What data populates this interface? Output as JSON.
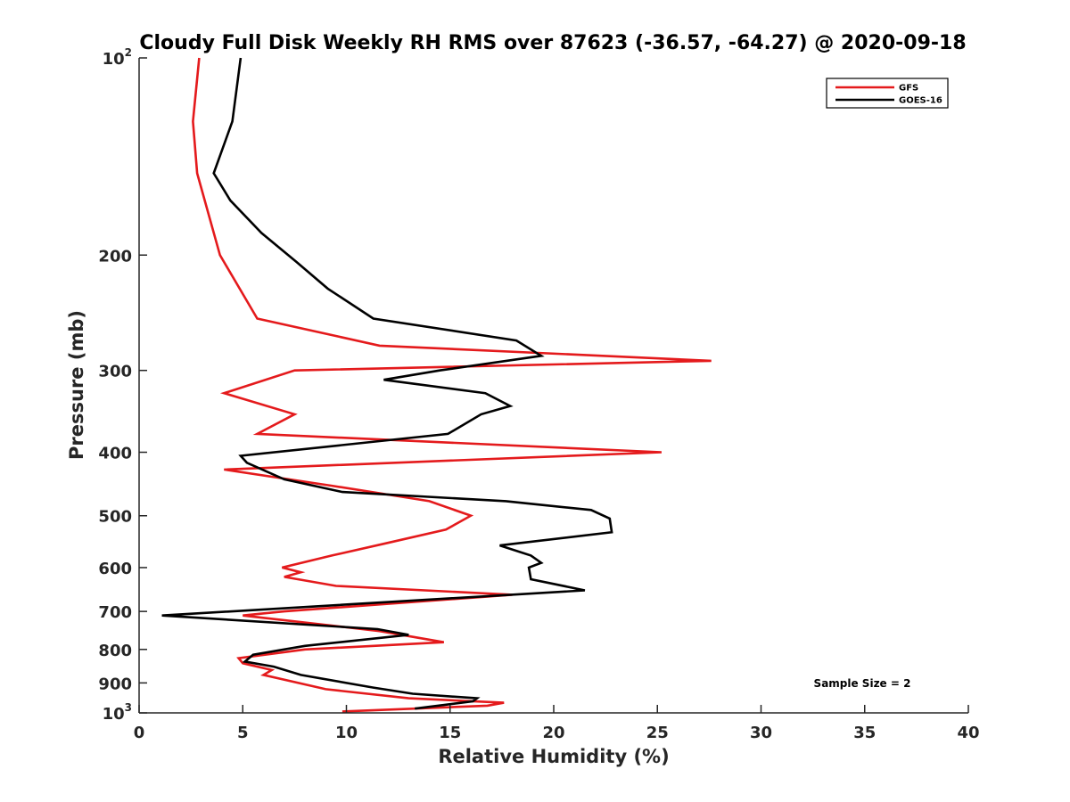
{
  "chart_data": {
    "type": "line",
    "title": "Cloudy Full Disk Weekly RH RMS over 87623 (-36.57, -64.27) @ 2020-09-18",
    "xlabel": "Relative Humidity (%)",
    "ylabel": "Pressure (mb)",
    "xlim": [
      0,
      40
    ],
    "ylim": [
      100,
      1000
    ],
    "y_scale": "log",
    "y_reversed": true,
    "grid": false,
    "legend_position": "top-right",
    "annotation": "Sample Size = 2",
    "x_ticks": [
      {
        "value": 0,
        "label": "0"
      },
      {
        "value": 5,
        "label": "5"
      },
      {
        "value": 10,
        "label": "10"
      },
      {
        "value": 15,
        "label": "15"
      },
      {
        "value": 20,
        "label": "20"
      },
      {
        "value": 25,
        "label": "25"
      },
      {
        "value": 30,
        "label": "30"
      },
      {
        "value": 35,
        "label": "35"
      },
      {
        "value": 40,
        "label": "40"
      }
    ],
    "y_ticks": [
      {
        "value": 100,
        "base": "10",
        "exp": "2"
      },
      {
        "value": 200,
        "label": "200"
      },
      {
        "value": 300,
        "label": "300"
      },
      {
        "value": 400,
        "label": "400"
      },
      {
        "value": 500,
        "label": "500"
      },
      {
        "value": 600,
        "label": "600"
      },
      {
        "value": 700,
        "label": "700"
      },
      {
        "value": 800,
        "label": "800"
      },
      {
        "value": 900,
        "label": "900"
      },
      {
        "value": 1000,
        "base": "10",
        "exp": "3"
      }
    ],
    "series": [
      {
        "name": "GFS",
        "color": "#e41a1c",
        "points": [
          [
            2.9,
            100
          ],
          [
            2.6,
            125
          ],
          [
            2.8,
            150
          ],
          [
            3.9,
            200
          ],
          [
            5.7,
            250
          ],
          [
            11.6,
            275
          ],
          [
            27.6,
            290
          ],
          [
            7.5,
            300
          ],
          [
            4.1,
            325
          ],
          [
            7.5,
            350
          ],
          [
            5.7,
            375
          ],
          [
            25.2,
            400
          ],
          [
            4.1,
            425
          ],
          [
            9.3,
            450
          ],
          [
            14.0,
            475
          ],
          [
            16.0,
            500
          ],
          [
            14.8,
            525
          ],
          [
            12.0,
            550
          ],
          [
            9.3,
            575
          ],
          [
            6.9,
            600
          ],
          [
            7.8,
            610
          ],
          [
            7.0,
            620
          ],
          [
            9.5,
            640
          ],
          [
            18.0,
            660
          ],
          [
            7.0,
            700
          ],
          [
            5.0,
            710
          ],
          [
            11.6,
            750
          ],
          [
            14.7,
            780
          ],
          [
            8.0,
            800
          ],
          [
            4.8,
            825
          ],
          [
            5.0,
            840
          ],
          [
            6.4,
            860
          ],
          [
            6.0,
            875
          ],
          [
            9.0,
            920
          ],
          [
            13.0,
            950
          ],
          [
            17.6,
            965
          ],
          [
            16.8,
            975
          ],
          [
            9.8,
            995
          ]
        ]
      },
      {
        "name": "GOES-16",
        "color": "#000000",
        "points": [
          [
            4.9,
            100
          ],
          [
            4.5,
            125
          ],
          [
            3.6,
            150
          ],
          [
            4.4,
            165
          ],
          [
            5.9,
            185
          ],
          [
            7.6,
            205
          ],
          [
            9.1,
            225
          ],
          [
            11.3,
            250
          ],
          [
            18.2,
            270
          ],
          [
            19.4,
            285
          ],
          [
            14.5,
            300
          ],
          [
            11.8,
            310
          ],
          [
            16.7,
            325
          ],
          [
            17.9,
            340
          ],
          [
            16.5,
            350
          ],
          [
            14.9,
            375
          ],
          [
            4.9,
            405
          ],
          [
            5.2,
            415
          ],
          [
            7.0,
            440
          ],
          [
            9.8,
            460
          ],
          [
            17.7,
            475
          ],
          [
            21.8,
            490
          ],
          [
            22.7,
            505
          ],
          [
            22.8,
            530
          ],
          [
            17.4,
            555
          ],
          [
            18.9,
            575
          ],
          [
            19.4,
            590
          ],
          [
            18.8,
            600
          ],
          [
            18.9,
            625
          ],
          [
            21.5,
            650
          ],
          [
            1.1,
            710
          ],
          [
            11.5,
            745
          ],
          [
            13.0,
            760
          ],
          [
            8.0,
            790
          ],
          [
            5.5,
            815
          ],
          [
            5.1,
            835
          ],
          [
            6.5,
            850
          ],
          [
            7.8,
            875
          ],
          [
            11.3,
            915
          ],
          [
            13.2,
            935
          ],
          [
            16.3,
            950
          ],
          [
            16.1,
            960
          ],
          [
            13.3,
            985
          ]
        ]
      }
    ]
  }
}
